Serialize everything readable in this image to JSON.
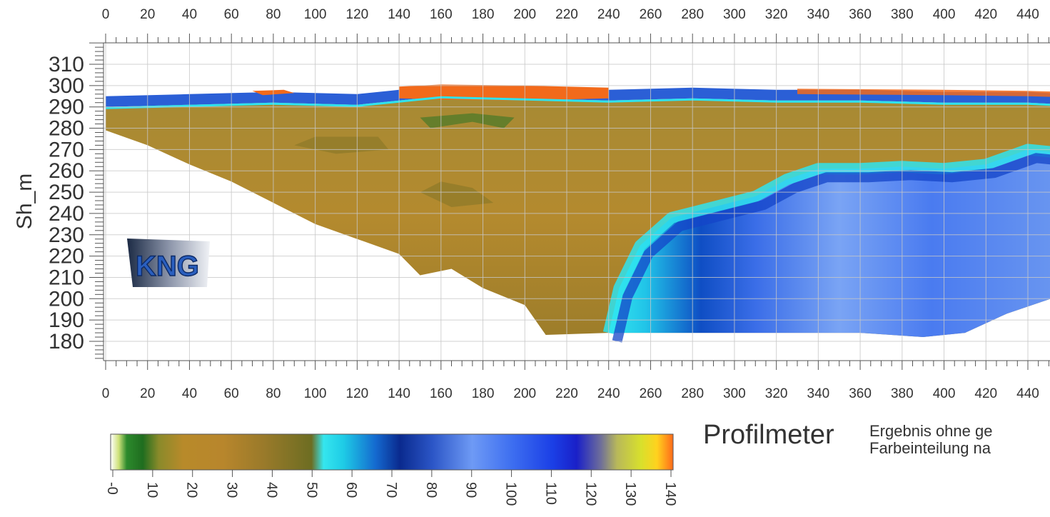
{
  "chart_data": {
    "type": "heatmap",
    "title": "",
    "xlabel": "",
    "ylabel": "Sh_m",
    "xlim": [
      0,
      460
    ],
    "ylim": [
      170,
      320
    ],
    "x_ticks": [
      0,
      20,
      40,
      60,
      80,
      100,
      120,
      140,
      160,
      180,
      200,
      220,
      240,
      260,
      280,
      300,
      320,
      340,
      360,
      380,
      400,
      420,
      440
    ],
    "y_ticks": [
      310,
      300,
      290,
      280,
      270,
      260,
      250,
      240,
      230,
      220,
      210,
      200,
      190,
      180
    ],
    "grid": true,
    "x_axis_top": true,
    "x_axis_bottom": true,
    "surface_profile": [
      [
        0,
        295
      ],
      [
        40,
        296
      ],
      [
        80,
        297
      ],
      [
        120,
        296
      ],
      [
        140,
        298
      ],
      [
        160,
        300
      ],
      [
        200,
        299
      ],
      [
        240,
        298
      ],
      [
        280,
        299
      ],
      [
        320,
        298
      ],
      [
        360,
        298
      ],
      [
        400,
        297
      ],
      [
        440,
        297
      ],
      [
        460,
        296
      ]
    ],
    "bottom_profile": [
      [
        0,
        279
      ],
      [
        20,
        272
      ],
      [
        40,
        263
      ],
      [
        60,
        255
      ],
      [
        80,
        245
      ],
      [
        100,
        235
      ],
      [
        120,
        228
      ],
      [
        140,
        221
      ],
      [
        150,
        211
      ],
      [
        165,
        214
      ],
      [
        180,
        205
      ],
      [
        200,
        197
      ],
      [
        210,
        183
      ],
      [
        240,
        184
      ],
      [
        280,
        184
      ],
      [
        320,
        184
      ],
      [
        360,
        184
      ],
      [
        390,
        182
      ],
      [
        410,
        184
      ],
      [
        430,
        193
      ],
      [
        460,
        203
      ]
    ],
    "low_value_zone_outline": [
      [
        240,
        184
      ],
      [
        245,
        205
      ],
      [
        255,
        225
      ],
      [
        270,
        238
      ],
      [
        290,
        243
      ],
      [
        310,
        248
      ],
      [
        325,
        256
      ],
      [
        340,
        261
      ],
      [
        360,
        261
      ],
      [
        380,
        262
      ],
      [
        400,
        261
      ],
      [
        420,
        263
      ],
      [
        440,
        270
      ],
      [
        460,
        268
      ],
      [
        460,
        203
      ],
      [
        430,
        193
      ],
      [
        410,
        184
      ],
      [
        390,
        182
      ],
      [
        360,
        184
      ],
      [
        320,
        184
      ],
      [
        280,
        184
      ]
    ],
    "colorbar": {
      "min": 0,
      "max": 140,
      "tick_labels": [
        "-0",
        "10",
        "20",
        "30",
        "40",
        "50",
        "60",
        "70",
        "80",
        "90",
        "100",
        "110",
        "120",
        "130",
        "140"
      ],
      "tick_values": [
        0,
        10,
        20,
        30,
        40,
        50,
        60,
        70,
        80,
        90,
        100,
        110,
        120,
        130,
        140
      ],
      "colors": [
        [
          0,
          "#ffffff"
        ],
        [
          2,
          "#cfe27a"
        ],
        [
          4,
          "#2c8a2c"
        ],
        [
          8,
          "#1f6d1f"
        ],
        [
          12,
          "#8a8a2a"
        ],
        [
          18,
          "#b88a2a"
        ],
        [
          28,
          "#b8862c"
        ],
        [
          38,
          "#9a7a2a"
        ],
        [
          50,
          "#6d6d22"
        ],
        [
          53,
          "#35e6ee"
        ],
        [
          58,
          "#1ecbe6"
        ],
        [
          66,
          "#1469cf"
        ],
        [
          72,
          "#0a2a8e"
        ],
        [
          80,
          "#2b55c6"
        ],
        [
          90,
          "#6e9af5"
        ],
        [
          100,
          "#3d6ef0"
        ],
        [
          110,
          "#1b3fe6"
        ],
        [
          116,
          "#1a20c8"
        ],
        [
          122,
          "#6e6e9a"
        ],
        [
          126,
          "#b8b85a"
        ],
        [
          132,
          "#d8e02c"
        ],
        [
          136,
          "#ffd21e"
        ],
        [
          140,
          "#ff6a1a"
        ]
      ]
    }
  },
  "logo": {
    "text": "KNG"
  },
  "caption": {
    "title": "Profilmeter",
    "line1": "Ergebnis ohne ge",
    "line2": "Farbeinteilung na"
  },
  "colors": {
    "grid": "#c7c7c7",
    "axis": "#555555",
    "surface_orange": "#f26a1b",
    "surface_blue": "#2b5fd6",
    "sediment": "#b38a30",
    "cyan": "#2fe3ee",
    "deep_blue": "#1444c8",
    "light_blue": "#6f9bf2"
  }
}
